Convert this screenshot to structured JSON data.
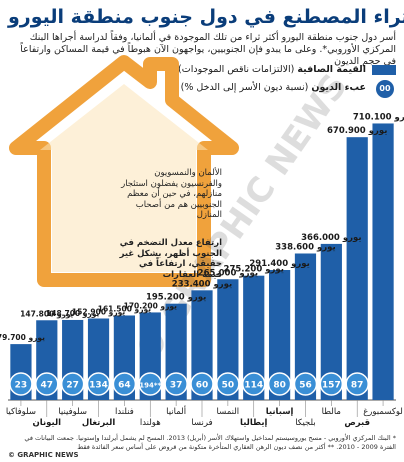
{
  "title": "الثراء المصطنع في دول جنوب منطقة اليورو",
  "intro": "أسر دول جنوب منطقة اليورو أكثر ثراء من تلك الموجودة في ألمانيا، وفقاً لدراسة أجراها البنك المركزي الأوروبي*. وعلى ما يبدو فإن الجنوبيين، يواجهون الآن هبوطاً في قيمة المساكن وارتفاعاً في حجم الديون",
  "legend": {
    "net_worth_bold": "القيمة الصافية",
    "net_worth_note": "(الالتزامات ناقص الموجودات)",
    "debt_bold": "عبء الديون",
    "debt_note": "(نسبة ديون الأسر إلى الدخل %)",
    "debt_circle": "00"
  },
  "callout_1": "الألمان والنمسويون والفرنسيون يفضلون استئجار منازلهم، في حين أن معظم الجنوبيين هم من أصحاب المنازل",
  "callout_2": "ارتفاع معدل التضخم في الجنوب أظهر، بشكل غير حقيقي، ارتفاعاً في قيمة العقارات",
  "currency": "يورو",
  "colors": {
    "bar": "#1f5fa8",
    "circle": "#3a8fd6",
    "house": "#f0a23c",
    "title": "#0a3d7a"
  },
  "chart_data": {
    "type": "bar",
    "title": "",
    "categories": [
      "سلوفاكيا",
      "اليونان",
      "سلوفينيا",
      "البرتغال",
      "فنلندا",
      "هولندا",
      "ألمانيا",
      "فرنسا",
      "النمسا",
      "إيطاليا",
      "إسبانيا",
      "بلجيكا",
      "مالطا",
      "قبرص",
      "لوكسمبورغ"
    ],
    "series": [
      {
        "name": "القيمة الصافية",
        "values": [
          79700,
          147800,
          148700,
          152900,
          161500,
          170200,
          195200,
          233400,
          265000,
          275200,
          291400,
          338600,
          366000,
          670900,
          710100
        ]
      },
      {
        "name": "عبء الديون",
        "values": [
          23,
          47,
          27,
          134,
          64,
          194,
          37,
          60,
          50,
          114,
          80,
          56,
          157,
          87,
          null
        ]
      }
    ],
    "value_labels": [
      "79.700",
      "147.800",
      "148.700",
      "152.900",
      "161.500",
      "170.200",
      "195.200",
      "233.400",
      "265.000",
      "275.200",
      "291.400",
      "338.600",
      "366.000",
      "670.900",
      "710.100"
    ],
    "debt_labels": [
      "23",
      "47",
      "27",
      "134",
      "64",
      "194**",
      "37",
      "60",
      "50",
      "114",
      "80",
      "56",
      "157",
      "87"
    ],
    "highlight_categories": [
      "اليونان",
      "البرتغال",
      "إيطاليا",
      "إسبانيا",
      "قبرص"
    ],
    "ylim": [
      0,
      720000
    ],
    "grid": false
  },
  "footnote": "* البنك المركزي الأوروبي - مسح يوروسيستم لمداخيل واستهلاك الأسر (أبريل) 2013. المسح لم يشمل أيرلندا وإستونيا. جمعت البيانات في الفترة 2009 - 2010. ** أكثر من نصف ديون الرهن العقاري المتأخرة متكونة من قروض على أساس سعر الفائدة فقط",
  "credit": "© GRAPHIC NEWS"
}
